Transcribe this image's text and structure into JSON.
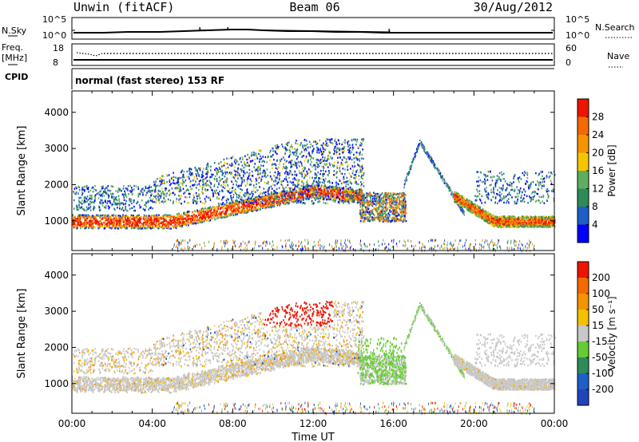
{
  "header": {
    "station": "Unwin (fitACF)",
    "beam": "Beam 06",
    "date": "30/Aug/2012"
  },
  "strips": {
    "nsky_label": "N.Sky",
    "nsky_ticks": [
      "10^5",
      "10^0"
    ],
    "nsearch_label": "N.Search",
    "nsearch_ticks": [
      "10^5",
      "10^0"
    ],
    "freq_label": "Freq.",
    "freq_unit": "[MHz]",
    "freq_ticks": [
      "18",
      "8"
    ],
    "nave_label": "Nave",
    "nave_ticks": [
      "60",
      "0"
    ],
    "cpid_label": "CPID",
    "cpid_value": "normal (fast stereo) 153 RF"
  },
  "chart_data": [
    {
      "type": "heatmap",
      "title": "",
      "ylabel": "Slant Range [km]",
      "xlabel": "",
      "xlim_hours": [
        0,
        24
      ],
      "ylim": [
        180,
        4590
      ],
      "yticks": [
        1000,
        2000,
        3000,
        4000
      ],
      "colorbar": {
        "label": "Power [dB]",
        "ticks": [
          4,
          8,
          12,
          16,
          20,
          24,
          28
        ],
        "colors": [
          "#0000ff",
          "#1e5fc8",
          "#2e8b57",
          "#5fae5f",
          "#f5c600",
          "#f59400",
          "#f26a00",
          "#ee1400"
        ]
      }
    },
    {
      "type": "heatmap",
      "title": "",
      "ylabel": "Slant Range [km]",
      "xlabel": "Time UT",
      "xlim_hours": [
        0,
        24
      ],
      "ylim": [
        180,
        4590
      ],
      "yticks": [
        1000,
        2000,
        3000,
        4000
      ],
      "xticks": [
        "00:00",
        "04:00",
        "08:00",
        "12:00",
        "16:00",
        "20:00",
        "00:00"
      ],
      "colorbar": {
        "label": "Velocity [m s⁻¹]",
        "ticks": [
          200,
          100,
          50,
          15,
          -15,
          -50,
          -100,
          -200
        ],
        "colors": [
          "#2244bb",
          "#1e5fc8",
          "#2e8b57",
          "#66cc33",
          "#c8c8c8",
          "#f5c000",
          "#f59400",
          "#f26a00",
          "#ee1400"
        ]
      }
    }
  ]
}
